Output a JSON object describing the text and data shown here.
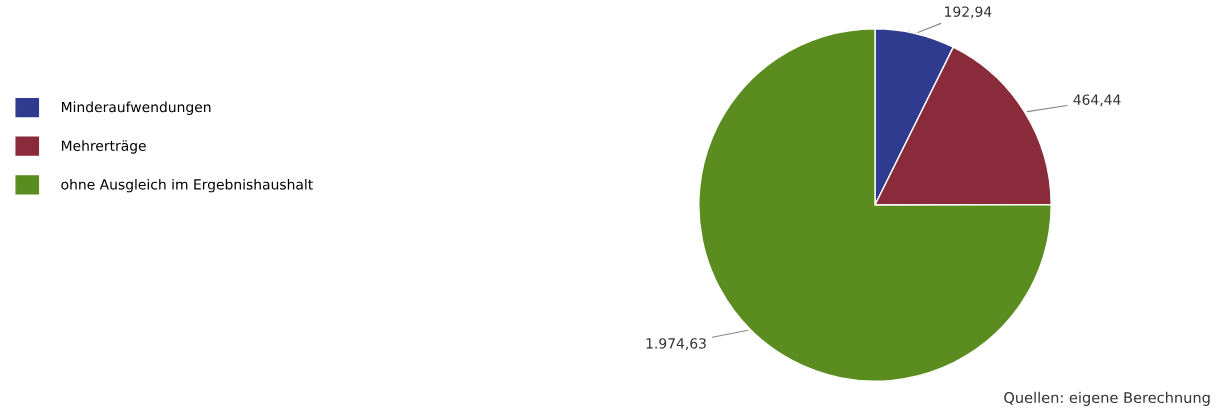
{
  "chart_data": {
    "type": "pie",
    "categories": [
      "Minderaufwendungen",
      "Mehrerträge",
      "ohne Ausgleich im Ergebnishaushalt"
    ],
    "values": [
      192.94,
      464.44,
      1974.63
    ],
    "value_labels": [
      "192,94",
      "464,44",
      "1.974,63"
    ],
    "colors": [
      "#2f3b8f",
      "#8a2b3b",
      "#5b8c1f"
    ],
    "legend": "left",
    "annotations": [
      "Quellen: eigene Berechnung"
    ]
  }
}
